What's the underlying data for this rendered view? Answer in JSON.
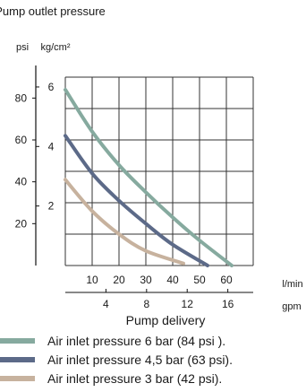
{
  "chart_data": {
    "type": "line",
    "title": "Pump outlet pressure",
    "y_units": {
      "psi": "psi",
      "kgcm2": "kg/cm²"
    },
    "y_psi": {
      "ticks": [
        20,
        40,
        60,
        80
      ],
      "range": [
        0,
        90
      ]
    },
    "y_kgcm2": {
      "ticks": [
        2,
        4,
        6
      ],
      "range": [
        0,
        6.33
      ]
    },
    "x_lpm": {
      "unit": "l/min",
      "ticks": [
        10,
        20,
        30,
        40,
        50,
        60
      ],
      "range": [
        0,
        70
      ]
    },
    "x_gpm": {
      "unit": "gpm",
      "ticks": [
        4,
        8,
        12,
        16
      ],
      "range": [
        0,
        18.5
      ]
    },
    "xlabel": "Pump delivery",
    "grid": true,
    "legend_position": "bottom",
    "series": [
      {
        "name": "Air inlet pressure 6 bar (84 psi ).",
        "color": "#86aa9f",
        "x": [
          0,
          10,
          20,
          30,
          40,
          50,
          62
        ],
        "y": [
          84,
          64,
          48,
          35,
          23,
          12,
          0
        ]
      },
      {
        "name": "Air inlet pressure 4,5 bar (63 psi).",
        "color": "#5c6a88",
        "x": [
          0,
          10,
          20,
          30,
          40,
          53
        ],
        "y": [
          62,
          44,
          31,
          20,
          10,
          0
        ]
      },
      {
        "name": "Air inlet pressure 3 bar (42 psi).",
        "color": "#c7b29e",
        "x": [
          0,
          10,
          20,
          30,
          44
        ],
        "y": [
          41,
          26,
          15,
          7,
          1
        ]
      }
    ]
  }
}
